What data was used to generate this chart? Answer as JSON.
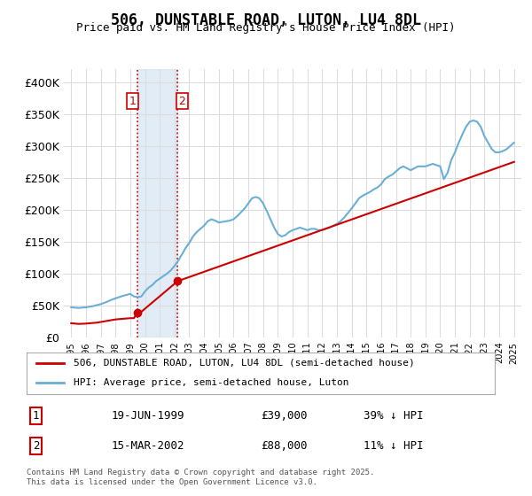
{
  "title": "506, DUNSTABLE ROAD, LUTON, LU4 8DL",
  "subtitle": "Price paid vs. HM Land Registry's House Price Index (HPI)",
  "ylabel": "",
  "ylim": [
    0,
    420000
  ],
  "yticks": [
    0,
    50000,
    100000,
    150000,
    200000,
    250000,
    300000,
    350000,
    400000
  ],
  "ytick_labels": [
    "£0",
    "£50K",
    "£100K",
    "£150K",
    "£200K",
    "£250K",
    "£300K",
    "£350K",
    "£400K"
  ],
  "hpi_color": "#6baed6",
  "price_color": "#cc0000",
  "sale1_date": 1999.46,
  "sale1_price": 39000,
  "sale1_label": "1",
  "sale2_date": 2002.21,
  "sale2_price": 88000,
  "sale2_label": "2",
  "shade_color": "#c6dbef",
  "shade_alpha": 0.5,
  "vline_color": "#cc0000",
  "vline_style": ":",
  "legend_line1": "506, DUNSTABLE ROAD, LUTON, LU4 8DL (semi-detached house)",
  "legend_line2": "HPI: Average price, semi-detached house, Luton",
  "table_row1": [
    "1",
    "19-JUN-1999",
    "£39,000",
    "39% ↓ HPI"
  ],
  "table_row2": [
    "2",
    "15-MAR-2002",
    "£88,000",
    "11% ↓ HPI"
  ],
  "footnote": "Contains HM Land Registry data © Crown copyright and database right 2025.\nThis data is licensed under the Open Government Licence v3.0.",
  "background_color": "#ffffff",
  "hpi_data": {
    "years": [
      1995.0,
      1995.25,
      1995.5,
      1995.75,
      1996.0,
      1996.25,
      1996.5,
      1996.75,
      1997.0,
      1997.25,
      1997.5,
      1997.75,
      1998.0,
      1998.25,
      1998.5,
      1998.75,
      1999.0,
      1999.25,
      1999.5,
      1999.75,
      2000.0,
      2000.25,
      2000.5,
      2000.75,
      2001.0,
      2001.25,
      2001.5,
      2001.75,
      2002.0,
      2002.25,
      2002.5,
      2002.75,
      2003.0,
      2003.25,
      2003.5,
      2003.75,
      2004.0,
      2004.25,
      2004.5,
      2004.75,
      2005.0,
      2005.25,
      2005.5,
      2005.75,
      2006.0,
      2006.25,
      2006.5,
      2006.75,
      2007.0,
      2007.25,
      2007.5,
      2007.75,
      2008.0,
      2008.25,
      2008.5,
      2008.75,
      2009.0,
      2009.25,
      2009.5,
      2009.75,
      2010.0,
      2010.25,
      2010.5,
      2010.75,
      2011.0,
      2011.25,
      2011.5,
      2011.75,
      2012.0,
      2012.25,
      2012.5,
      2012.75,
      2013.0,
      2013.25,
      2013.5,
      2013.75,
      2014.0,
      2014.25,
      2014.5,
      2014.75,
      2015.0,
      2015.25,
      2015.5,
      2015.75,
      2016.0,
      2016.25,
      2016.5,
      2016.75,
      2017.0,
      2017.25,
      2017.5,
      2017.75,
      2018.0,
      2018.25,
      2018.5,
      2018.75,
      2019.0,
      2019.25,
      2019.5,
      2019.75,
      2020.0,
      2020.25,
      2020.5,
      2020.75,
      2021.0,
      2021.25,
      2021.5,
      2021.75,
      2022.0,
      2022.25,
      2022.5,
      2022.75,
      2023.0,
      2023.25,
      2023.5,
      2023.75,
      2024.0,
      2024.25,
      2024.5,
      2024.75,
      2025.0
    ],
    "values": [
      47000,
      46500,
      46000,
      46500,
      47000,
      48000,
      49000,
      50500,
      52000,
      54000,
      56500,
      59000,
      61000,
      63000,
      65000,
      66500,
      68000,
      64000,
      63000,
      64000,
      72000,
      78000,
      82000,
      88000,
      92000,
      96000,
      100000,
      105000,
      112000,
      120000,
      130000,
      140000,
      148000,
      158000,
      165000,
      170000,
      175000,
      182000,
      185000,
      183000,
      180000,
      181000,
      182000,
      183000,
      185000,
      190000,
      196000,
      202000,
      210000,
      218000,
      220000,
      218000,
      210000,
      198000,
      185000,
      172000,
      162000,
      158000,
      160000,
      165000,
      168000,
      170000,
      172000,
      170000,
      168000,
      170000,
      170000,
      168000,
      168000,
      170000,
      172000,
      175000,
      178000,
      182000,
      188000,
      195000,
      202000,
      210000,
      218000,
      222000,
      225000,
      228000,
      232000,
      235000,
      240000,
      248000,
      252000,
      255000,
      260000,
      265000,
      268000,
      265000,
      262000,
      265000,
      268000,
      268000,
      268000,
      270000,
      272000,
      270000,
      268000,
      248000,
      258000,
      278000,
      290000,
      305000,
      318000,
      330000,
      338000,
      340000,
      338000,
      330000,
      315000,
      305000,
      295000,
      290000,
      290000,
      292000,
      295000,
      300000,
      305000
    ]
  },
  "price_data": {
    "years": [
      1995.0,
      1995.25,
      1995.5,
      1995.75,
      1996.0,
      1996.25,
      1996.5,
      1996.75,
      1997.0,
      1997.25,
      1997.5,
      1997.75,
      1998.0,
      1998.25,
      1998.5,
      1998.75,
      1999.0,
      1999.25,
      1999.5,
      1999.75,
      2002.21,
      2025.0
    ],
    "values": [
      22000,
      21500,
      21000,
      21200,
      21500,
      22000,
      22500,
      23000,
      24000,
      25000,
      26000,
      27000,
      28000,
      28500,
      29000,
      29500,
      30000,
      30000,
      39000,
      40000,
      88000,
      275000
    ]
  }
}
